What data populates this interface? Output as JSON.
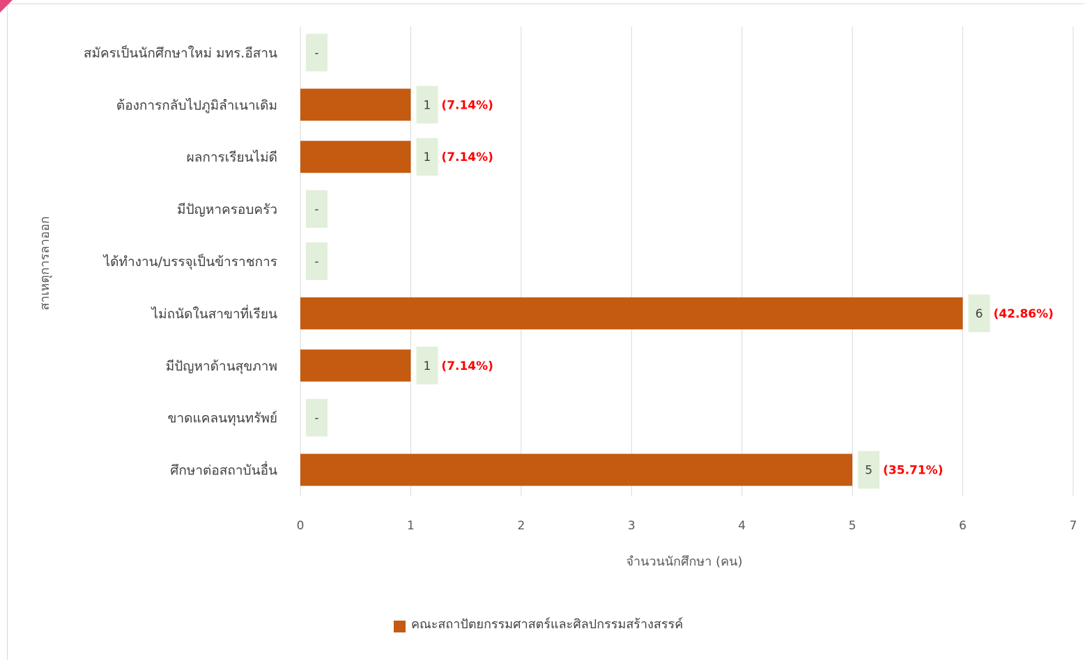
{
  "chart_data": {
    "type": "bar",
    "orientation": "horizontal",
    "categories": [
      "สมัครเป็นนักศึกษาใหม่ มทร.อีสาน",
      "ต้องการกลับไปภูมิลำเนาเดิม",
      "ผลการเรียนไม่ดี",
      "มีปัญหาครอบครัว",
      "ได้ทำงาน/บรรจุเป็นข้าราชการ",
      "ไม่ถนัดในสาขาที่เรียน",
      "มีปัญหาด้านสุขภาพ",
      "ขาดแคลนทุนทรัพย์",
      "ศึกษาต่อสถาบันอื่น"
    ],
    "series": [
      {
        "name": "คณะสถาปัตยกรรมศาสตร์และศิลปกรรมสร้างสรรค์",
        "values": [
          0,
          1,
          1,
          0,
          0,
          6,
          1,
          0,
          5
        ],
        "data_labels": [
          "-",
          "1",
          "1",
          "-",
          "-",
          "6",
          "1",
          "-",
          "5"
        ],
        "percent_labels": [
          "",
          "(7.14%)",
          "(7.14%)",
          "",
          "",
          "(42.86%)",
          "(7.14%)",
          "",
          "(35.71%)"
        ]
      }
    ],
    "xlabel": "จำนวนนักศึกษา (คน)",
    "ylabel": "สาเหตุการลาออก",
    "xlim": [
      0,
      7
    ],
    "xticks": [
      "0",
      "1",
      "2",
      "3",
      "4",
      "5",
      "6",
      "7"
    ],
    "grid": true,
    "legend_position": "bottom",
    "colors": {
      "bar": "#c55a11",
      "label_bg": "#e2efda",
      "percent": "#ff0000",
      "grid": "#d9d9d9",
      "corner": "#e8457a"
    }
  }
}
